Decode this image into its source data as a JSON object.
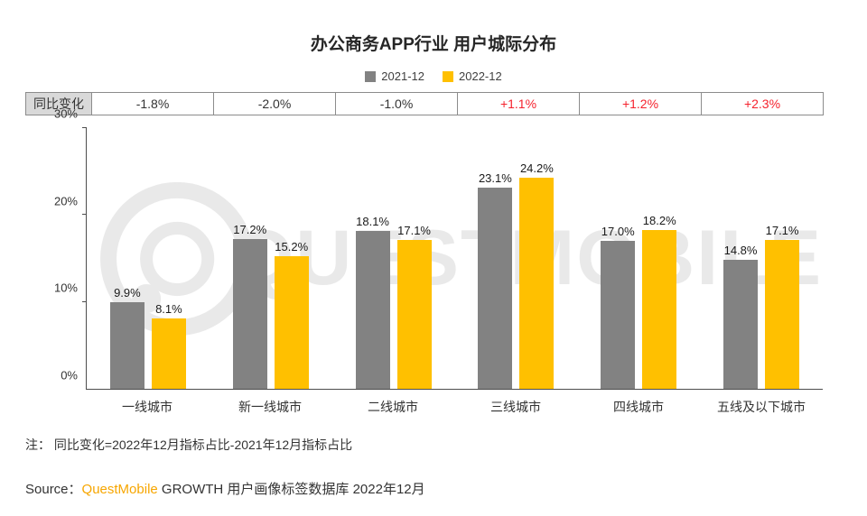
{
  "title": "办公商务APP行业 用户城际分布",
  "legend": [
    {
      "label": "2021-12",
      "color": "#828282"
    },
    {
      "label": "2022-12",
      "color": "#FFC000"
    }
  ],
  "yoy": {
    "label": "同比变化",
    "values": [
      "-1.8%",
      "-2.0%",
      "-1.0%",
      "+1.1%",
      "+1.2%",
      "+2.3%"
    ]
  },
  "chart_data": {
    "type": "bar",
    "title": "办公商务APP行业 用户城际分布",
    "categories": [
      "一线城市",
      "新一线城市",
      "二线城市",
      "三线城市",
      "四线城市",
      "五线及以下城市"
    ],
    "series": [
      {
        "name": "2021-12",
        "color": "#828282",
        "values": [
          9.9,
          17.2,
          18.1,
          23.1,
          17.0,
          14.8
        ],
        "labels": [
          "9.9%",
          "17.2%",
          "18.1%",
          "23.1%",
          "17.0%",
          "14.8%"
        ]
      },
      {
        "name": "2022-12",
        "color": "#FFC000",
        "values": [
          8.1,
          15.2,
          17.1,
          24.2,
          18.2,
          17.1
        ],
        "labels": [
          "8.1%",
          "15.2%",
          "17.1%",
          "24.2%",
          "18.2%",
          "17.1%"
        ]
      }
    ],
    "ylim": [
      0,
      30
    ],
    "yticks": [
      "0%",
      "10%",
      "20%",
      "30%"
    ],
    "grid": false,
    "legend_position": "top"
  },
  "watermark": "QUESTMOBILE",
  "note": "注： 同比变化=2022年12月指标占比-2021年12月指标占比",
  "source": {
    "prefix": "Source：",
    "brand": "QuestMobile",
    "rest": " GROWTH 用户画像标签数据库 2022年12月"
  }
}
